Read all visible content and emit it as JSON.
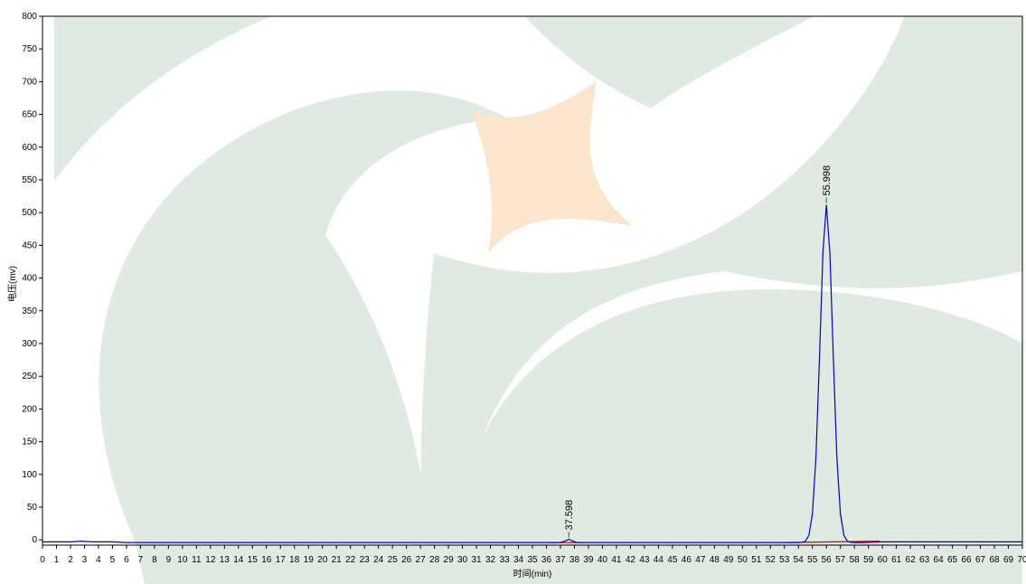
{
  "chart_data": {
    "type": "line",
    "xlabel": "时间(min)",
    "ylabel": "电压(mv)",
    "xlim": [
      0,
      70
    ],
    "ylim": [
      -8,
      800
    ],
    "xticks": [
      0,
      1,
      2,
      3,
      4,
      5,
      6,
      7,
      8,
      9,
      10,
      11,
      12,
      13,
      14,
      15,
      16,
      17,
      18,
      19,
      20,
      21,
      22,
      23,
      24,
      25,
      26,
      27,
      28,
      29,
      30,
      31,
      32,
      33,
      34,
      35,
      36,
      37,
      38,
      39,
      40,
      41,
      42,
      43,
      44,
      45,
      46,
      47,
      48,
      49,
      50,
      51,
      52,
      53,
      54,
      55,
      56,
      57,
      58,
      59,
      60,
      61,
      62,
      63,
      64,
      65,
      66,
      67,
      68,
      69,
      70
    ],
    "yticks": [
      0,
      50,
      100,
      150,
      200,
      250,
      300,
      350,
      400,
      450,
      500,
      550,
      600,
      650,
      700,
      750,
      800
    ],
    "series": [
      {
        "color": "#0000cc",
        "x": [
          0,
          1,
          2,
          2.8,
          3.5,
          5,
          6,
          7,
          10,
          15,
          20,
          25,
          30,
          35,
          36,
          37,
          37.3,
          37.598,
          37.9,
          38.2,
          39,
          45,
          50,
          53,
          53.5,
          53.75,
          54,
          54.25,
          54.5,
          54.75,
          55,
          55.25,
          55.5,
          55.75,
          55.998,
          56.25,
          56.5,
          56.75,
          57,
          57.25,
          57.5,
          57.75,
          58,
          58.25,
          58.5,
          60,
          65,
          70
        ],
        "values": [
          -3,
          -3,
          -3,
          -2,
          -3,
          -3,
          -4,
          -4,
          -4,
          -4,
          -4,
          -4,
          -4,
          -4,
          -4,
          -4,
          -2,
          1,
          -2,
          -4,
          -4,
          -4,
          -4,
          -4,
          -4,
          -4,
          -4,
          -3.7,
          -2,
          7,
          40,
          125,
          275,
          438,
          512,
          438,
          275,
          125,
          40,
          7,
          -2,
          -3.7,
          -4,
          -4,
          -4,
          -3,
          -3,
          -3
        ]
      }
    ],
    "peaks": [
      {
        "x": 37.598,
        "y": 1,
        "label": "37.598",
        "color": "#008000"
      },
      {
        "x": 55.998,
        "y": 512,
        "label": "55.998",
        "color": "#008000"
      }
    ],
    "baselines": [
      {
        "x": [
          36.2,
          38.8
        ],
        "y": [
          -4,
          -4
        ],
        "color": "#cc0000"
      },
      {
        "x": [
          53.2,
          59.8
        ],
        "y": [
          -4,
          -2
        ],
        "color": "#cc0000"
      }
    ]
  }
}
